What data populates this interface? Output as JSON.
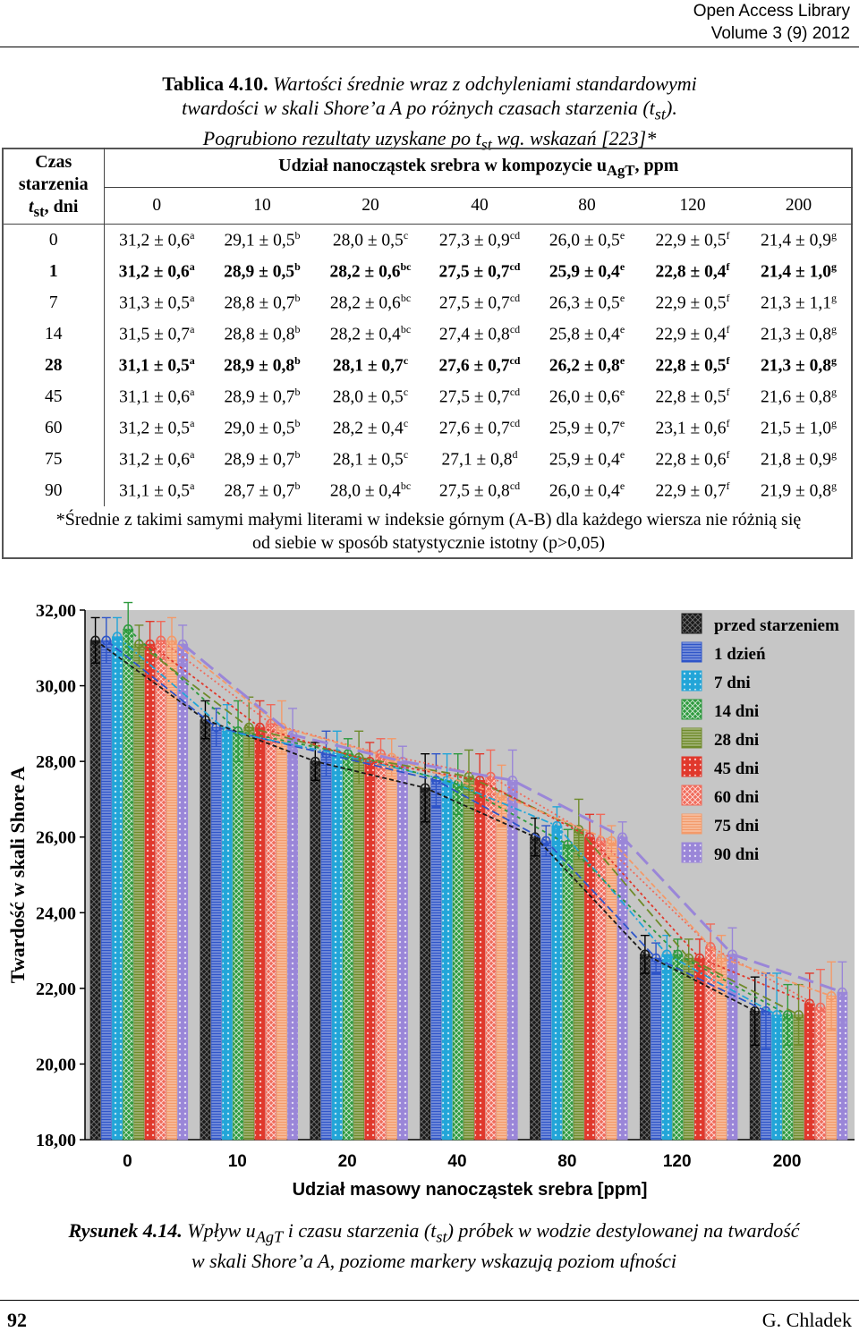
{
  "header": {
    "line1": "Open Access Library",
    "line2": "Volume 3 (9) 2012"
  },
  "table": {
    "caption_label": "Tablica 4.10.",
    "caption_line1": "Wartości średnie wraz z odchyleniami standardowymi",
    "caption_line2": "twardości w skali Shore’a A po różnych czasach starzenia (t",
    "caption_line2_sub": "st",
    "caption_line2_end": ").",
    "caption_line3": "Pogrubiono rezultaty uzyskane po t",
    "caption_line3_sub": "st",
    "caption_line3_end": " wg. wskazań [223]*",
    "rowhead_l1": "Czas",
    "rowhead_l2": "starzenia",
    "rowhead_l3": "t",
    "rowhead_l3_sub": "st",
    "rowhead_l3_end": ", dni",
    "colgroup": "Udział nanocząstek srebra w kompozycie u",
    "colgroup_sub": "AgT",
    "colgroup_end": ", ppm",
    "columns": [
      "0",
      "10",
      "20",
      "40",
      "80",
      "120",
      "200"
    ],
    "rows": [
      {
        "t": "0",
        "bold": false,
        "cells": [
          [
            "31,2 ± 0,6",
            "a"
          ],
          [
            "29,1 ± 0,5",
            "b"
          ],
          [
            "28,0 ± 0,5",
            "c"
          ],
          [
            "27,3 ± 0,9",
            "cd"
          ],
          [
            "26,0 ± 0,5",
            "e"
          ],
          [
            "22,9 ± 0,5",
            "f"
          ],
          [
            "21,4 ± 0,9",
            "g"
          ]
        ]
      },
      {
        "t": "1",
        "bold": true,
        "cells": [
          [
            "31,2 ± 0,6",
            "a"
          ],
          [
            "28,9 ± 0,5",
            "b"
          ],
          [
            "28,2 ± 0,6",
            "bc"
          ],
          [
            "27,5 ± 0,7",
            "cd"
          ],
          [
            "25,9 ± 0,4",
            "e"
          ],
          [
            "22,8 ± 0,4",
            "f"
          ],
          [
            "21,4 ± 1,0",
            "g"
          ]
        ]
      },
      {
        "t": "7",
        "bold": false,
        "cells": [
          [
            "31,3 ± 0,5",
            "a"
          ],
          [
            "28,8 ± 0,7",
            "b"
          ],
          [
            "28,2 ± 0,6",
            "bc"
          ],
          [
            "27,5 ± 0,7",
            "cd"
          ],
          [
            "26,3 ± 0,5",
            "e"
          ],
          [
            "22,9 ± 0,5",
            "f"
          ],
          [
            "21,3 ± 1,1",
            "g"
          ]
        ]
      },
      {
        "t": "14",
        "bold": false,
        "cells": [
          [
            "31,5 ± 0,7",
            "a"
          ],
          [
            "28,8 ± 0,8",
            "b"
          ],
          [
            "28,2 ± 0,4",
            "bc"
          ],
          [
            "27,4 ± 0,8",
            "cd"
          ],
          [
            "25,8 ± 0,4",
            "e"
          ],
          [
            "22,9 ± 0,4",
            "f"
          ],
          [
            "21,3 ± 0,8",
            "g"
          ]
        ]
      },
      {
        "t": "28",
        "bold": true,
        "cells": [
          [
            "31,1 ± 0,5",
            "a"
          ],
          [
            "28,9 ± 0,8",
            "b"
          ],
          [
            "28,1 ± 0,7",
            "c"
          ],
          [
            "27,6 ± 0,7",
            "cd"
          ],
          [
            "26,2 ± 0,8",
            "e"
          ],
          [
            "22,8 ± 0,5",
            "f"
          ],
          [
            "21,3 ± 0,8",
            "g"
          ]
        ]
      },
      {
        "t": "45",
        "bold": false,
        "cells": [
          [
            "31,1 ± 0,6",
            "a"
          ],
          [
            "28,9 ± 0,7",
            "b"
          ],
          [
            "28,0 ± 0,5",
            "c"
          ],
          [
            "27,5 ± 0,7",
            "cd"
          ],
          [
            "26,0 ± 0,6",
            "e"
          ],
          [
            "22,8 ± 0,5",
            "f"
          ],
          [
            "21,6 ± 0,8",
            "g"
          ]
        ]
      },
      {
        "t": "60",
        "bold": false,
        "cells": [
          [
            "31,2 ± 0,5",
            "a"
          ],
          [
            "29,0 ± 0,5",
            "b"
          ],
          [
            "28,2 ± 0,4",
            "c"
          ],
          [
            "27,6 ± 0,7",
            "cd"
          ],
          [
            "25,9 ± 0,7",
            "e"
          ],
          [
            "23,1 ± 0,6",
            "f"
          ],
          [
            "21,5 ± 1,0",
            "g"
          ]
        ]
      },
      {
        "t": "75",
        "bold": false,
        "cells": [
          [
            "31,2 ± 0,6",
            "a"
          ],
          [
            "28,9 ± 0,7",
            "b"
          ],
          [
            "28,1 ± 0,5",
            "c"
          ],
          [
            "27,1 ± 0,8",
            "d"
          ],
          [
            "25,9 ± 0,4",
            "e"
          ],
          [
            "22,8 ± 0,6",
            "f"
          ],
          [
            "21,8 ± 0,9",
            "g"
          ]
        ]
      },
      {
        "t": "90",
        "bold": false,
        "cells": [
          [
            "31,1 ± 0,5",
            "a"
          ],
          [
            "28,7 ± 0,7",
            "b"
          ],
          [
            "28,0 ± 0,4",
            "bc"
          ],
          [
            "27,5 ± 0,8",
            "cd"
          ],
          [
            "26,0 ± 0,4",
            "e"
          ],
          [
            "22,9 ± 0,7",
            "f"
          ],
          [
            "21,9 ± 0,8",
            "g"
          ]
        ]
      }
    ],
    "note_line1": "*Średnie z takimi samymi małymi literami w indeksie górnym (A-B) dla każdego wiersza nie różnią się",
    "note_line2": "od siebie w sposób statystycznie istotny (p>0,05)"
  },
  "chart_data": {
    "type": "bar",
    "xlabel": "Udział masowy nanocząstek srebra [ppm]",
    "ylabel": "Twardość w skali Shore A",
    "categories": [
      "0",
      "10",
      "20",
      "40",
      "80",
      "120",
      "200"
    ],
    "ylim": [
      18,
      32
    ],
    "yticks": [
      "18,00",
      "20,00",
      "22,00",
      "24,00",
      "26,00",
      "28,00",
      "30,00",
      "32,00"
    ],
    "legend_position": "top-right",
    "series": [
      {
        "name": "przed starzeniem",
        "color": "#1a1a1a",
        "values": [
          31.2,
          29.1,
          28.0,
          27.3,
          26.0,
          22.9,
          21.4
        ],
        "errors": [
          0.6,
          0.5,
          0.5,
          0.9,
          0.5,
          0.5,
          0.9
        ]
      },
      {
        "name": "1 dzień",
        "color": "#2f55c8",
        "values": [
          31.2,
          28.9,
          28.2,
          27.5,
          25.9,
          22.8,
          21.4
        ],
        "errors": [
          0.6,
          0.5,
          0.6,
          0.7,
          0.4,
          0.4,
          1.0
        ]
      },
      {
        "name": "7 dni",
        "color": "#22a5d8",
        "values": [
          31.3,
          28.8,
          28.2,
          27.5,
          26.3,
          22.9,
          21.3
        ],
        "errors": [
          0.5,
          0.7,
          0.6,
          0.7,
          0.5,
          0.5,
          1.1
        ]
      },
      {
        "name": "14 dni",
        "color": "#2e9a3e",
        "values": [
          31.5,
          28.8,
          28.2,
          27.4,
          25.8,
          22.9,
          21.3
        ],
        "errors": [
          0.7,
          0.8,
          0.4,
          0.8,
          0.4,
          0.4,
          0.8
        ]
      },
      {
        "name": "28 dni",
        "color": "#6e8a2a",
        "values": [
          31.1,
          28.9,
          28.1,
          27.6,
          26.2,
          22.8,
          21.3
        ],
        "errors": [
          0.5,
          0.8,
          0.7,
          0.7,
          0.8,
          0.5,
          0.8
        ]
      },
      {
        "name": "45 dni",
        "color": "#e0382c",
        "values": [
          31.1,
          28.9,
          28.0,
          27.5,
          26.0,
          22.8,
          21.6
        ],
        "errors": [
          0.6,
          0.7,
          0.5,
          0.7,
          0.6,
          0.5,
          0.8
        ]
      },
      {
        "name": "60 dni",
        "color": "#f06a5a",
        "values": [
          31.2,
          29.0,
          28.2,
          27.6,
          25.9,
          23.1,
          21.5
        ],
        "errors": [
          0.5,
          0.5,
          0.4,
          0.7,
          0.7,
          0.6,
          1.0
        ]
      },
      {
        "name": "75 dni",
        "color": "#f39a6a",
        "values": [
          31.2,
          28.9,
          28.1,
          27.1,
          25.9,
          22.8,
          21.8
        ],
        "errors": [
          0.6,
          0.7,
          0.5,
          0.8,
          0.4,
          0.6,
          0.9
        ]
      },
      {
        "name": "90 dni",
        "color": "#9a86d8",
        "values": [
          31.1,
          28.7,
          28.0,
          27.5,
          26.0,
          22.9,
          21.9
        ],
        "errors": [
          0.5,
          0.7,
          0.4,
          0.8,
          0.4,
          0.7,
          0.8
        ]
      }
    ]
  },
  "figure": {
    "caption_label": "Rysunek 4.14.",
    "caption_a": " Wpływ u",
    "caption_a_sub": "AgT",
    "caption_b": " i czasu starzenia (t",
    "caption_b_sub": "st",
    "caption_c": ") próbek w wodzie destylowanej na twardość",
    "caption_line2": "w skali Shore’a A, poziome markery wskazują poziom ufności"
  },
  "footer": {
    "page_number": "92",
    "author": "G. Chladek"
  }
}
